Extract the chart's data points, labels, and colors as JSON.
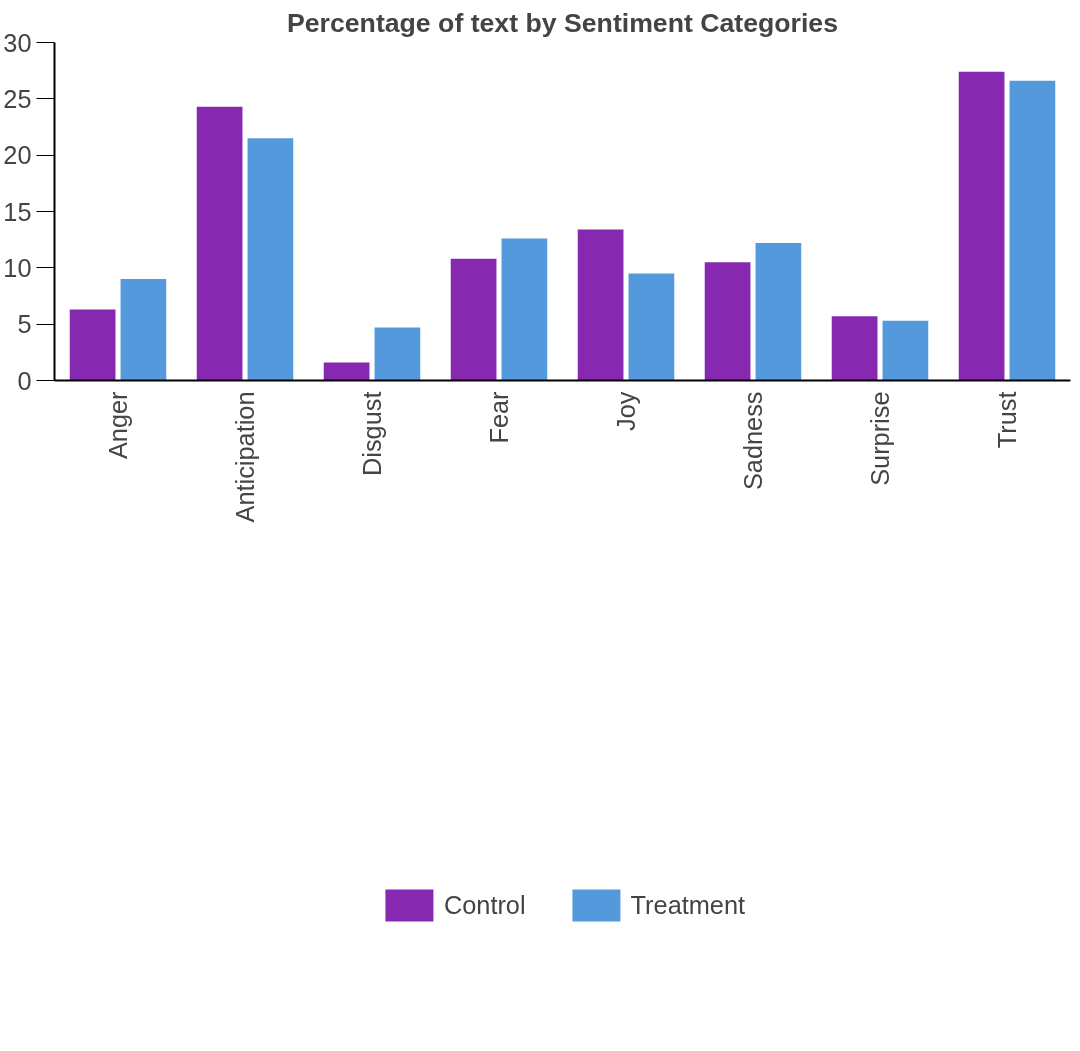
{
  "chart_data": {
    "type": "bar",
    "title": "Percentage of text by Sentiment Categories",
    "categories": [
      "Anger",
      "Anticipation",
      "Disgust",
      "Fear",
      "Joy",
      "Sadness",
      "Surprise",
      "Trust"
    ],
    "series": [
      {
        "name": "Control",
        "color": "#8629b0",
        "values": [
          6.3,
          24.3,
          1.6,
          10.8,
          13.4,
          10.5,
          5.7,
          27.4
        ]
      },
      {
        "name": "Treatment",
        "color": "#5599dd",
        "values": [
          9.0,
          21.5,
          4.7,
          12.6,
          9.5,
          12.2,
          5.3,
          26.6
        ]
      }
    ],
    "ylim": [
      0,
      30
    ],
    "yticks": [
      0,
      5,
      10,
      15,
      20,
      25,
      30
    ],
    "grid": false,
    "legend": "bottom"
  }
}
